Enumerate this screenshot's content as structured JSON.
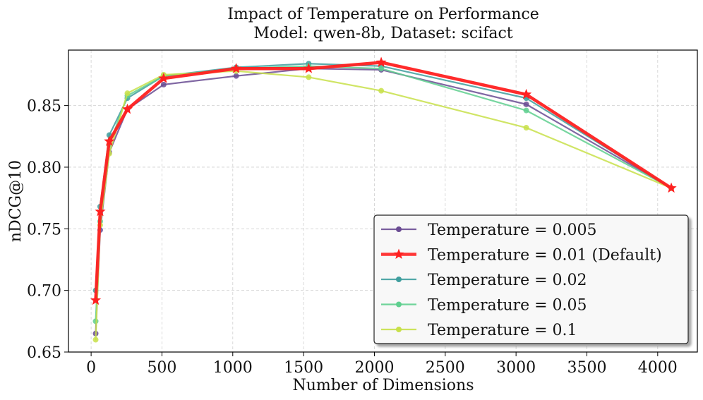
{
  "chart_data": {
    "type": "line",
    "title": "Impact of Temperature on Performance",
    "subtitle": "Model: qwen-8b, Dataset: scifact",
    "xlabel": "Number of Dimensions",
    "ylabel": "nDCG@10",
    "xlim": [
      -160,
      4280
    ],
    "ylim": [
      0.65,
      0.895
    ],
    "x_ticks": [
      0,
      500,
      1000,
      1500,
      2000,
      2500,
      3000,
      3500,
      4000
    ],
    "y_ticks": [
      0.65,
      0.7,
      0.75,
      0.8,
      0.85
    ],
    "y_tick_labels": [
      "0.65",
      "0.70",
      "0.75",
      "0.80",
      "0.85"
    ],
    "grid": true,
    "legend_position": "bottom-right",
    "x": [
      32,
      64,
      128,
      256,
      512,
      1024,
      1536,
      2048,
      3072,
      4096
    ],
    "series": [
      {
        "name": "Temperature = 0.005",
        "color": "#6a4c93",
        "marker": "circle",
        "emphasis": false,
        "values": [
          0.665,
          0.749,
          0.812,
          0.847,
          0.867,
          0.874,
          0.88,
          0.879,
          0.851,
          0.783
        ]
      },
      {
        "name": "Temperature = 0.01 (Default)",
        "color": "#ff2020",
        "marker": "star",
        "emphasis": true,
        "values": [
          0.692,
          0.764,
          0.821,
          0.847,
          0.872,
          0.88,
          0.88,
          0.885,
          0.859,
          0.783
        ]
      },
      {
        "name": "Temperature = 0.02",
        "color": "#3f9e9e",
        "marker": "circle",
        "emphasis": false,
        "values": [
          0.7,
          0.768,
          0.826,
          0.856,
          0.874,
          0.881,
          0.884,
          0.882,
          0.856,
          0.783
        ]
      },
      {
        "name": "Temperature = 0.05",
        "color": "#5fcf8f",
        "marker": "circle",
        "emphasis": false,
        "values": [
          0.675,
          0.756,
          0.818,
          0.858,
          0.874,
          0.88,
          0.882,
          0.88,
          0.846,
          0.783
        ]
      },
      {
        "name": "Temperature = 0.1",
        "color": "#c8e04a",
        "marker": "circle",
        "emphasis": false,
        "values": [
          0.66,
          0.753,
          0.811,
          0.86,
          0.875,
          0.878,
          0.873,
          0.862,
          0.832,
          0.783
        ]
      }
    ]
  }
}
